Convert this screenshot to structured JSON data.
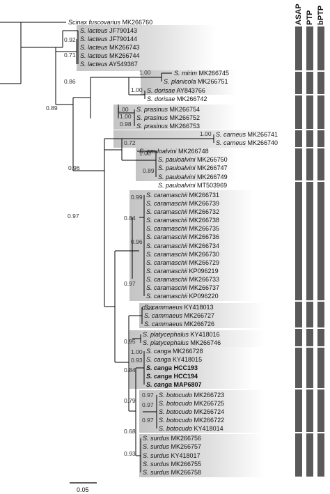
{
  "taxa": [
    {
      "genus": "Scinax",
      "species": "fuscovarius",
      "acc": "MK266760",
      "bold": false
    },
    {
      "genus": "S.",
      "species": "lacteus",
      "acc": "JF790143",
      "bold": false
    },
    {
      "genus": "S.",
      "species": "lacteus",
      "acc": "JF790144",
      "bold": false
    },
    {
      "genus": "S.",
      "species": "lacteus",
      "acc": "MK266743",
      "bold": false
    },
    {
      "genus": "S.",
      "species": "lacteus",
      "acc": "MK266744",
      "bold": false
    },
    {
      "genus": "S.",
      "species": "lacteus",
      "acc": "AY549367",
      "bold": false
    },
    {
      "genus": "S.",
      "species": "mirim",
      "acc": "MK266745",
      "bold": false
    },
    {
      "genus": "S.",
      "species": "planicola",
      "acc": "MK266751",
      "bold": false
    },
    {
      "genus": "S.",
      "species": "dorisae",
      "acc": "AY843766",
      "bold": false
    },
    {
      "genus": "S.",
      "species": "dorisae",
      "acc": "MK266742",
      "bold": false
    },
    {
      "genus": "S.",
      "species": "prasinus",
      "acc": "MK266754",
      "bold": false
    },
    {
      "genus": "S.",
      "species": "prasinus",
      "acc": "MK266752",
      "bold": false
    },
    {
      "genus": "S.",
      "species": "prasinus",
      "acc": "MK266753",
      "bold": false
    },
    {
      "genus": "S.",
      "species": "carneus",
      "acc": "MK266741",
      "bold": false
    },
    {
      "genus": "S.",
      "species": "carneus",
      "acc": "MK266740",
      "bold": false
    },
    {
      "genus": "S.",
      "species": "pauloalvini",
      "acc": "MK266748",
      "bold": false
    },
    {
      "genus": "S.",
      "species": "pauloalvini",
      "acc": "MK266750",
      "bold": false
    },
    {
      "genus": "S.",
      "species": "pauloalvini",
      "acc": "MK266747",
      "bold": false
    },
    {
      "genus": "S.",
      "species": "pauloalvini",
      "acc": "MK266749",
      "bold": false
    },
    {
      "genus": "S.",
      "species": "pauloalvini",
      "acc": "MT503969",
      "bold": false
    },
    {
      "genus": "S.",
      "species": "caramaschii",
      "acc": "MK266731",
      "bold": false
    },
    {
      "genus": "S.",
      "species": "caramaschii",
      "acc": "MK266739",
      "bold": false
    },
    {
      "genus": "S.",
      "species": "caramaschii",
      "acc": "MK266732",
      "bold": false
    },
    {
      "genus": "S.",
      "species": "caramaschii",
      "acc": "MK266738",
      "bold": false
    },
    {
      "genus": "S.",
      "species": "caramaschii",
      "acc": "MK266735",
      "bold": false
    },
    {
      "genus": "S.",
      "species": "caramaschii",
      "acc": "MK266736",
      "bold": false
    },
    {
      "genus": "S.",
      "species": "caramaschii",
      "acc": "MK266734",
      "bold": false
    },
    {
      "genus": "S.",
      "species": "caramaschii",
      "acc": "MK266730",
      "bold": false
    },
    {
      "genus": "S.",
      "species": "caramaschii",
      "acc": "MK266729",
      "bold": false
    },
    {
      "genus": "S.",
      "species": "caramaschii",
      "acc": "KP096219",
      "bold": false
    },
    {
      "genus": "S.",
      "species": "caramaschii",
      "acc": "MK266733",
      "bold": false
    },
    {
      "genus": "S.",
      "species": "caramaschii",
      "acc": "MK266737",
      "bold": false
    },
    {
      "genus": "S.",
      "species": "caramaschii",
      "acc": "KP096220",
      "bold": false
    },
    {
      "genus": "S.",
      "species": "cammaeus",
      "acc": "KY418013",
      "bold": false
    },
    {
      "genus": "S.",
      "species": "cammaeus",
      "acc": "MK266727",
      "bold": false
    },
    {
      "genus": "S.",
      "species": "cammaeus",
      "acc": "MK266726",
      "bold": false
    },
    {
      "genus": "S.",
      "species": "platycephalus",
      "acc": "KY418016",
      "bold": false
    },
    {
      "genus": "S.",
      "species": "platycephalus",
      "acc": "MK266746",
      "bold": false
    },
    {
      "genus": "S.",
      "species": "canga",
      "acc": "MK266728",
      "bold": false
    },
    {
      "genus": "S.",
      "species": "canga",
      "acc": "KY418015",
      "bold": false
    },
    {
      "genus": "S.",
      "species": "canga",
      "acc": "HCC193",
      "bold": true
    },
    {
      "genus": "S.",
      "species": "canga",
      "acc": "HCC194",
      "bold": true
    },
    {
      "genus": "S.",
      "species": "canga",
      "acc": "MAP6807",
      "bold": true
    },
    {
      "genus": "S.",
      "species": "botocudo",
      "acc": "MK266723",
      "bold": false
    },
    {
      "genus": "S.",
      "species": "botocudo",
      "acc": "MK266725",
      "bold": false
    },
    {
      "genus": "S.",
      "species": "botocudo",
      "acc": "MK266724",
      "bold": false
    },
    {
      "genus": "S.",
      "species": "botocudo",
      "acc": "MK266722",
      "bold": false
    },
    {
      "genus": "S.",
      "species": "botocudo",
      "acc": "KY418014",
      "bold": false
    },
    {
      "genus": "S.",
      "species": "surdus",
      "acc": "MK266756",
      "bold": false
    },
    {
      "genus": "S.",
      "species": "surdus",
      "acc": "MK266757",
      "bold": false
    },
    {
      "genus": "S.",
      "species": "surdus",
      "acc": "KY418017",
      "bold": false
    },
    {
      "genus": "S.",
      "species": "surdus",
      "acc": "MK266755",
      "bold": false
    },
    {
      "genus": "S.",
      "species": "surdus",
      "acc": "MK266758",
      "bold": false
    }
  ],
  "supports": [
    "0.92",
    "0.71",
    "1.00",
    "0.86",
    "0.89",
    "1.00",
    "1.00",
    "1.00",
    "0.98",
    "1.00",
    "0.72",
    "1.00",
    "0.89",
    "0.96",
    "0.97",
    "0.99",
    "0.84",
    "0.96",
    "0.97",
    "0.99",
    "0.95",
    "1.00",
    "0.93",
    "0.84",
    "0.97",
    "0.79",
    "0.97",
    "0.97",
    "0.68",
    "0.93"
  ],
  "methods": [
    "ASAP",
    "PTP",
    "bPTP"
  ],
  "scale_bar": "0.05",
  "colors": {
    "bar": "#5a5a5a",
    "shade_dark": "#c4c4c4",
    "shade_light": "#ffffff",
    "line": "#000000"
  }
}
